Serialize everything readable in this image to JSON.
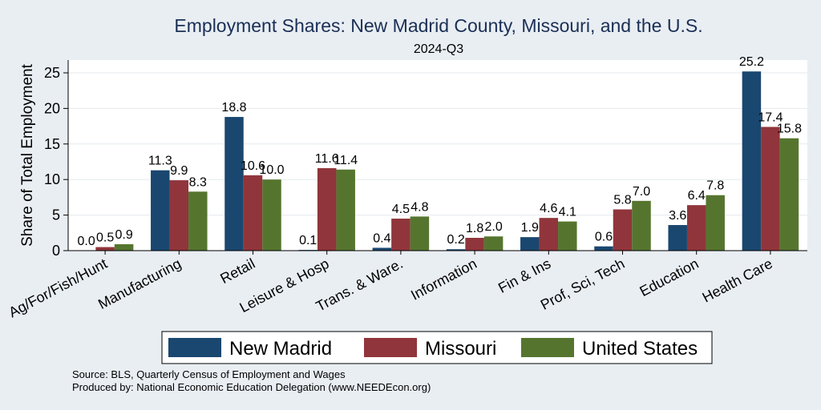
{
  "chart_data": {
    "type": "bar",
    "title": "Employment Shares: New Madrid County, Missouri, and the U.S.",
    "subtitle": "2024-Q3",
    "ylabel": "Share of Total Employment",
    "xlabel": "",
    "ylim": [
      0,
      27
    ],
    "yticks": [
      0,
      5,
      10,
      15,
      20,
      25
    ],
    "grid": true,
    "legend_position": "bottom",
    "categories": [
      "Ag/For/Fish/Hunt",
      "Manufacturing",
      "Retail",
      "Leisure & Hosp",
      "Trans. & Ware.",
      "Information",
      "Fin & Ins",
      "Prof, Sci, Tech",
      "Education",
      "Health Care"
    ],
    "series": [
      {
        "name": "New Madrid",
        "color": "#1a476f",
        "values": [
          0.0,
          11.3,
          18.8,
          0.1,
          0.4,
          0.2,
          1.9,
          0.6,
          3.6,
          25.2
        ],
        "labels": [
          "0.0",
          "11.3",
          "18.8",
          "0.1",
          "0.4",
          "0.2",
          "1.9",
          "0.6",
          "3.6",
          "25.2"
        ]
      },
      {
        "name": "Missouri",
        "color": "#90353b",
        "values": [
          0.5,
          9.9,
          10.6,
          11.6,
          4.5,
          1.8,
          4.6,
          5.8,
          6.4,
          17.4
        ],
        "labels": [
          "0.5",
          "9.9",
          "10.6",
          "11.6",
          "4.5",
          "1.8",
          "4.6",
          "5.8",
          "6.4",
          "17.4"
        ]
      },
      {
        "name": "United States",
        "color": "#55752f",
        "values": [
          0.9,
          8.3,
          10.0,
          11.4,
          4.8,
          2.0,
          4.1,
          7.0,
          7.8,
          15.8
        ],
        "labels": [
          "0.9",
          "8.3",
          "10.0",
          "11.4",
          "4.8",
          "2.0",
          "4.1",
          "7.0",
          "7.8",
          "15.8"
        ]
      }
    ]
  },
  "notes": {
    "source": "Source: BLS, Quarterly Census of Employment and Wages",
    "produced_by": "Produced by: National Economic Education Delegation (www.NEEDEcon.org)"
  }
}
